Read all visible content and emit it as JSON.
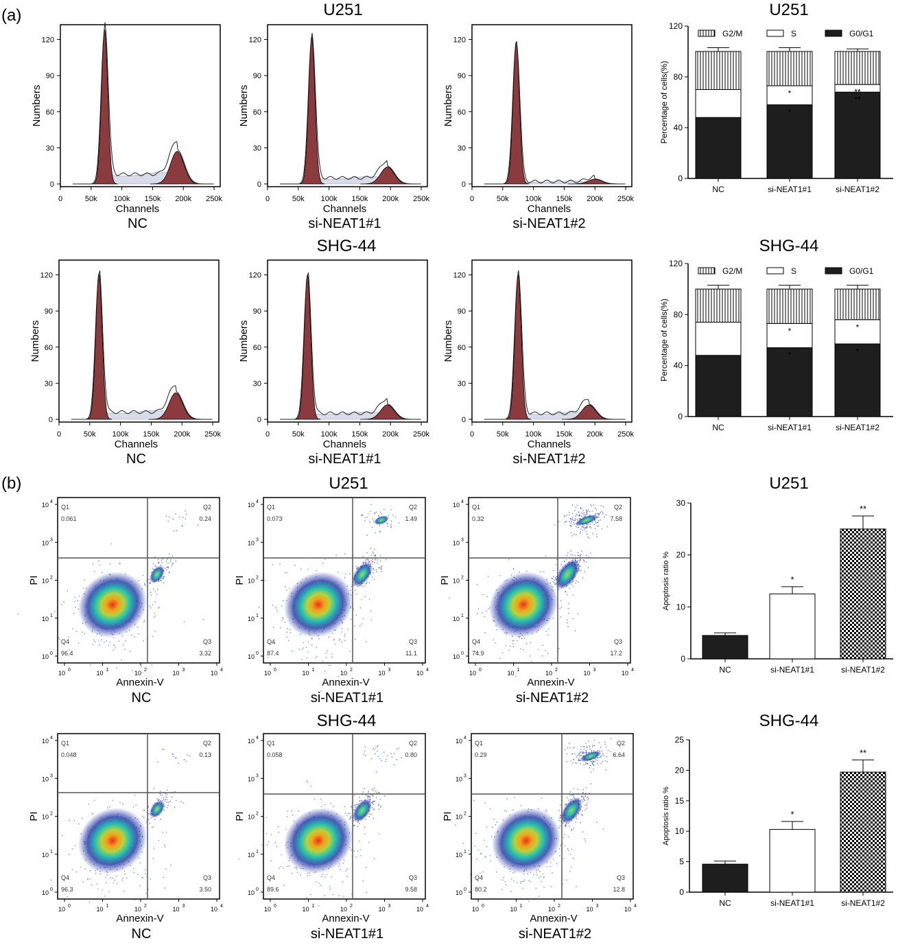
{
  "panel_labels": {
    "a": "(a)",
    "b": "(b)"
  },
  "cell_lines": {
    "u251": "U251",
    "shg44": "SHG-44"
  },
  "groups": [
    "NC",
    "si-NEAT1#1",
    "si-NEAT1#2"
  ],
  "histogram_axes": {
    "xlabel": "Channels",
    "ylabel": "Numbers",
    "xticks": [
      "0",
      "50k",
      "100k",
      "150k",
      "200k",
      "250k"
    ],
    "yticks": [
      "0",
      "30",
      "60",
      "90",
      "120"
    ]
  },
  "dotplot_axes": {
    "xlabel": "Annexin-V",
    "ylabel": "PI",
    "xtick_base": "10",
    "ytick_base": "10",
    "tick_exponents": [
      "0",
      "1",
      "2",
      "3",
      "4"
    ],
    "quadrant_names": [
      "Q1",
      "Q2",
      "Q3",
      "Q4"
    ]
  },
  "colors": {
    "peak_fill": "#8b3a3e",
    "s_phase_fill": "#d8dbe8",
    "bar_black": "#1e1e1e",
    "density_low": "#2b3fa8",
    "density_mid": "#22c4b0",
    "density_high": "#e8321e"
  },
  "chart_data": [
    {
      "type": "area",
      "id": "hist-u251-nc",
      "cell_line": "U251",
      "group": "NC",
      "xlabel": "Channels",
      "ylabel": "Numbers",
      "xlim": [
        0,
        260000
      ],
      "ylim": [
        0,
        130
      ],
      "g1_peak": {
        "x": 72000,
        "height": 128
      },
      "g2_peak": {
        "x": 190000,
        "height": 27
      },
      "s_plateau": 8
    },
    {
      "type": "area",
      "id": "hist-u251-si1",
      "cell_line": "U251",
      "group": "si-NEAT1#1",
      "xlabel": "Channels",
      "ylabel": "Numbers",
      "xlim": [
        0,
        260000
      ],
      "ylim": [
        0,
        130
      ],
      "g1_peak": {
        "x": 72000,
        "height": 122
      },
      "g2_peak": {
        "x": 195000,
        "height": 14
      },
      "s_plateau": 5
    },
    {
      "type": "area",
      "id": "hist-u251-si2",
      "cell_line": "U251",
      "group": "si-NEAT1#2",
      "xlabel": "Channels",
      "ylabel": "Numbers",
      "xlim": [
        0,
        260000
      ],
      "ylim": [
        0,
        130
      ],
      "g1_peak": {
        "x": 72000,
        "height": 118
      },
      "g2_peak": {
        "x": 200000,
        "height": 4
      },
      "s_plateau": 2
    },
    {
      "type": "area",
      "id": "hist-shg-nc",
      "cell_line": "SHG-44",
      "group": "NC",
      "xlabel": "Channels",
      "ylabel": "Numbers",
      "xlim": [
        0,
        260000
      ],
      "ylim": [
        0,
        130
      ],
      "g1_peak": {
        "x": 65000,
        "height": 121
      },
      "g2_peak": {
        "x": 190000,
        "height": 22
      },
      "s_plateau": 6
    },
    {
      "type": "area",
      "id": "hist-shg-si1",
      "cell_line": "SHG-44",
      "group": "si-NEAT1#1",
      "xlabel": "Channels",
      "ylabel": "Numbers",
      "xlim": [
        0,
        260000
      ],
      "ylim": [
        0,
        130
      ],
      "g1_peak": {
        "x": 65000,
        "height": 120
      },
      "g2_peak": {
        "x": 195000,
        "height": 12
      },
      "s_plateau": 5
    },
    {
      "type": "area",
      "id": "hist-shg-si2",
      "cell_line": "SHG-44",
      "group": "si-NEAT1#2",
      "xlabel": "Channels",
      "ylabel": "Numbers",
      "xlim": [
        0,
        260000
      ],
      "ylim": [
        0,
        130
      ],
      "g1_peak": {
        "x": 75000,
        "height": 120
      },
      "g2_peak": {
        "x": 190000,
        "height": 12
      },
      "s_plateau": 5
    },
    {
      "type": "bar",
      "stacked": true,
      "id": "cycle-u251",
      "title": "U251",
      "ylabel": "Percentage of cells(%)",
      "ylim": [
        0,
        120
      ],
      "yticks": [
        0,
        40,
        80,
        120
      ],
      "categories": [
        "NC",
        "si-NEAT1#1",
        "si-NEAT1#2"
      ],
      "series": [
        {
          "name": "G0/G1",
          "values": [
            48,
            58,
            68
          ],
          "err": [
            6,
            6,
            0
          ]
        },
        {
          "name": "S",
          "values": [
            22,
            15,
            6
          ],
          "err": [
            1,
            1,
            0
          ]
        },
        {
          "name": "G2/M",
          "values": [
            30,
            27,
            26
          ],
          "err": [
            3,
            3,
            2
          ]
        }
      ],
      "annotations": {
        "G0/G1": [
          "",
          "*",
          "**"
        ],
        "S": [
          "",
          "*",
          "**"
        ]
      },
      "legend": "top"
    },
    {
      "type": "bar",
      "stacked": true,
      "id": "cycle-shg",
      "title": "SHG-44",
      "ylabel": "Percentage of cells(%)",
      "ylim": [
        0,
        120
      ],
      "yticks": [
        0,
        40,
        80,
        120
      ],
      "categories": [
        "NC",
        "si-NEAT1#1",
        "si-NEAT1#2"
      ],
      "series": [
        {
          "name": "G0/G1",
          "values": [
            48,
            54,
            57
          ],
          "err": [
            5,
            4,
            6
          ]
        },
        {
          "name": "S",
          "values": [
            26,
            19,
            19
          ],
          "err": [
            1,
            1,
            1
          ]
        },
        {
          "name": "G2/M",
          "values": [
            26,
            27,
            24
          ],
          "err": [
            3,
            3,
            3
          ]
        }
      ],
      "annotations": {
        "G0/G1": [
          "",
          "*",
          "*"
        ],
        "S": [
          "",
          "*",
          "*"
        ]
      },
      "legend": "top"
    },
    {
      "type": "scatter",
      "id": "dot-u251-nc",
      "cell_line": "U251",
      "group": "NC",
      "xlabel": "Annexin-V",
      "ylabel": "PI",
      "quadrants": {
        "Q1": "0.061",
        "Q2": "0.24",
        "Q3": "3.32",
        "Q4": "96.4"
      }
    },
    {
      "type": "scatter",
      "id": "dot-u251-si1",
      "cell_line": "U251",
      "group": "si-NEAT1#1",
      "xlabel": "Annexin-V",
      "ylabel": "PI",
      "quadrants": {
        "Q1": "0.073",
        "Q2": "1.49",
        "Q3": "11.1",
        "Q4": "87.4"
      }
    },
    {
      "type": "scatter",
      "id": "dot-u251-si2",
      "cell_line": "U251",
      "group": "si-NEAT1#2",
      "xlabel": "Annexin-V",
      "ylabel": "PI",
      "quadrants": {
        "Q1": "0.32",
        "Q2": "7.58",
        "Q3": "17.2",
        "Q4": "74.9"
      }
    },
    {
      "type": "scatter",
      "id": "dot-shg-nc",
      "cell_line": "SHG-44",
      "group": "NC",
      "xlabel": "Annexin-V",
      "ylabel": "PI",
      "quadrants": {
        "Q1": "0.048",
        "Q2": "0.13",
        "Q3": "3.50",
        "Q4": "96.3"
      }
    },
    {
      "type": "scatter",
      "id": "dot-shg-si1",
      "cell_line": "SHG-44",
      "group": "si-NEAT1#1",
      "xlabel": "Annexin-V",
      "ylabel": "PI",
      "quadrants": {
        "Q1": "0.058",
        "Q2": "0.80",
        "Q3": "9.58",
        "Q4": "89.6"
      }
    },
    {
      "type": "scatter",
      "id": "dot-shg-si2",
      "cell_line": "SHG-44",
      "group": "si-NEAT1#2",
      "xlabel": "Annexin-V",
      "ylabel": "PI",
      "quadrants": {
        "Q1": "0.29",
        "Q2": "6.64",
        "Q3": "12.8",
        "Q4": "80.2"
      }
    },
    {
      "type": "bar",
      "id": "apop-u251",
      "title": "U251",
      "ylabel": "Apoptosis ratio %",
      "ylim": [
        0,
        30
      ],
      "yticks": [
        0,
        10,
        20,
        30
      ],
      "categories": [
        "NC",
        "si-NEAT1#1",
        "si-NEAT1#2"
      ],
      "values": [
        4.5,
        12.5,
        25
      ],
      "err": [
        0.5,
        1.4,
        2.5
      ],
      "annotations": [
        "",
        "*",
        "**"
      ],
      "fills": [
        "solid",
        "white",
        "checker"
      ]
    },
    {
      "type": "bar",
      "id": "apop-shg",
      "title": "SHG-44",
      "ylabel": "Apoptosis ratio %",
      "ylim": [
        0,
        25
      ],
      "yticks": [
        0,
        5,
        10,
        15,
        20,
        25
      ],
      "categories": [
        "NC",
        "si-NEAT1#1",
        "si-NEAT1#2"
      ],
      "values": [
        4.6,
        10.3,
        19.7
      ],
      "err": [
        0.5,
        1.3,
        2.0
      ],
      "annotations": [
        "",
        "*",
        "**"
      ],
      "fills": [
        "solid",
        "white",
        "checker"
      ]
    }
  ]
}
